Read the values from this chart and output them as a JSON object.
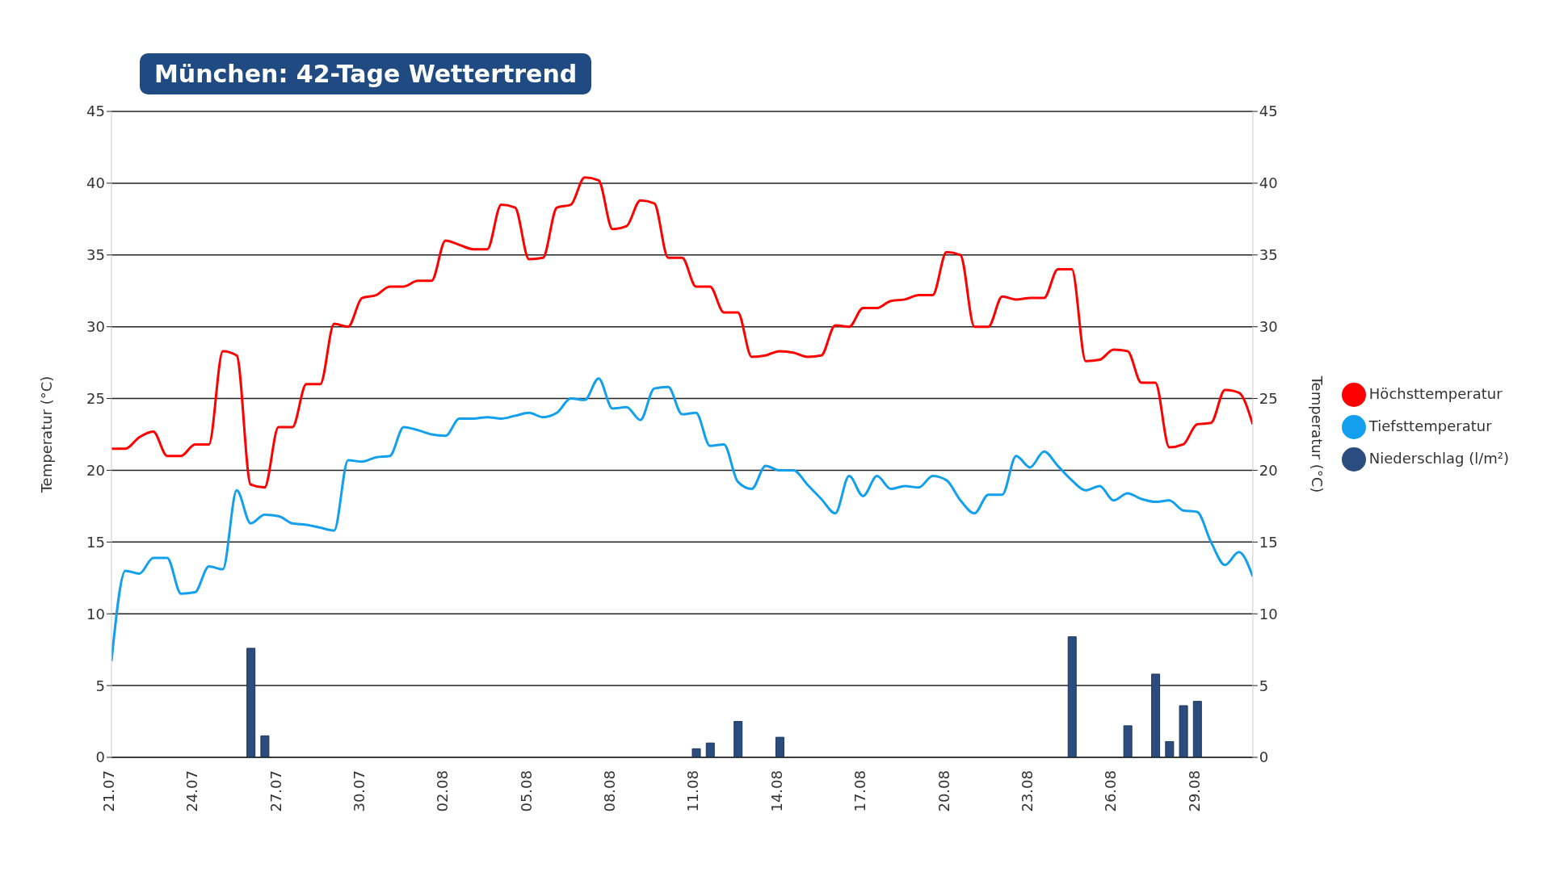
{
  "chart_data": {
    "type": "line",
    "title": "München: 42-Tage Wettertrend",
    "ylabel": "Temperatur (°C)",
    "y2label": "Temperatur (°C)",
    "categories": [
      "21.07",
      null,
      null,
      null,
      null,
      null,
      "24.07",
      null,
      null,
      null,
      null,
      null,
      "27.07",
      null,
      null,
      null,
      null,
      null,
      "30.07",
      null,
      null,
      null,
      null,
      null,
      "02.08",
      null,
      null,
      null,
      null,
      null,
      "05.08",
      null,
      null,
      null,
      null,
      null,
      "08.08",
      null,
      null,
      null,
      null,
      null,
      "11.08",
      null,
      null,
      null,
      null,
      null,
      "14.08",
      null,
      null,
      null,
      null,
      null,
      "17.08",
      null,
      null,
      null,
      null,
      null,
      "20.08",
      null,
      null,
      null,
      null,
      null,
      "23.08",
      null,
      null,
      null,
      null,
      null,
      "26.08",
      null,
      null,
      null,
      null,
      null,
      "29.08",
      null,
      null,
      null,
      null
    ],
    "series": [
      {
        "name": "Höchsttemperatur",
        "color": "#ff0000",
        "values": [
          21.5,
          21.5,
          22.3,
          22.7,
          21.0,
          21.0,
          21.8,
          21.8,
          28.3,
          28.0,
          19.0,
          18.8,
          23.0,
          23.0,
          26.0,
          26.0,
          30.2,
          30.0,
          32.0,
          32.2,
          32.8,
          32.8,
          33.2,
          33.2,
          36.0,
          35.7,
          35.4,
          35.4,
          38.5,
          38.3,
          34.7,
          34.8,
          38.3,
          38.5,
          40.4,
          40.2,
          36.8,
          37.0,
          38.8,
          38.6,
          34.8,
          34.8,
          32.8,
          32.8,
          31.0,
          31.0,
          27.9,
          28.0,
          28.3,
          28.2,
          27.9,
          28.0,
          30.1,
          30.0,
          31.3,
          31.3,
          31.8,
          31.9,
          32.2,
          32.2,
          35.2,
          35.0,
          30.0,
          30.0,
          32.1,
          31.9,
          32.0,
          32.0,
          34.0,
          34.0,
          27.6,
          27.7,
          28.4,
          28.3,
          26.1,
          26.1,
          21.6,
          21.8,
          23.2,
          23.3,
          25.6,
          25.4,
          23.2
        ]
      },
      {
        "name": "Tiefsttemperatur",
        "color": "#12a0ee",
        "values": [
          6.7,
          13.0,
          12.8,
          13.9,
          13.9,
          11.4,
          11.5,
          13.3,
          13.1,
          18.6,
          16.3,
          16.9,
          16.8,
          16.3,
          16.2,
          16.0,
          15.8,
          20.7,
          20.6,
          20.9,
          21.0,
          23.0,
          22.8,
          22.5,
          22.4,
          23.6,
          23.6,
          23.7,
          23.6,
          23.8,
          24.0,
          23.7,
          24.0,
          25.0,
          24.9,
          26.4,
          24.3,
          24.4,
          23.5,
          25.7,
          25.8,
          23.9,
          24.0,
          21.7,
          21.8,
          19.2,
          18.7,
          20.3,
          20.0,
          20.0,
          19.0,
          18.0,
          17.0,
          19.6,
          18.2,
          19.6,
          18.7,
          18.9,
          18.8,
          19.6,
          19.3,
          17.9,
          17.0,
          18.3,
          18.3,
          21.0,
          20.2,
          21.3,
          20.3,
          19.3,
          18.6,
          18.9,
          17.9,
          18.4,
          18.0,
          17.8,
          17.9,
          17.2,
          17.1,
          15.0,
          13.4,
          14.3,
          12.6
        ]
      },
      {
        "name": "Niederschlag (l/m²)",
        "type": "bar",
        "color": "#2b4c7e",
        "values": [
          null,
          null,
          null,
          null,
          null,
          null,
          null,
          null,
          null,
          null,
          7.6,
          1.5,
          null,
          null,
          null,
          null,
          null,
          null,
          null,
          null,
          null,
          null,
          null,
          null,
          null,
          null,
          null,
          null,
          null,
          null,
          null,
          null,
          null,
          null,
          null,
          null,
          null,
          null,
          null,
          null,
          null,
          null,
          0.6,
          1.0,
          null,
          2.5,
          null,
          null,
          1.4,
          null,
          null,
          null,
          null,
          null,
          null,
          null,
          null,
          null,
          null,
          null,
          null,
          null,
          null,
          null,
          null,
          null,
          null,
          null,
          null,
          8.4,
          null,
          null,
          null,
          2.2,
          null,
          5.8,
          1.1,
          3.6,
          3.9,
          null,
          null,
          null,
          null
        ]
      }
    ],
    "ylim": [
      0,
      45
    ],
    "yticks": [
      0,
      5,
      10,
      15,
      20,
      25,
      30,
      35,
      40,
      45
    ],
    "y2lim": [
      0,
      45
    ],
    "y2ticks": [
      0,
      5,
      10,
      15,
      20,
      25,
      30,
      35,
      40,
      45
    ],
    "grid": "y",
    "legend": "right",
    "marker": "none",
    "line_style": "solid"
  }
}
